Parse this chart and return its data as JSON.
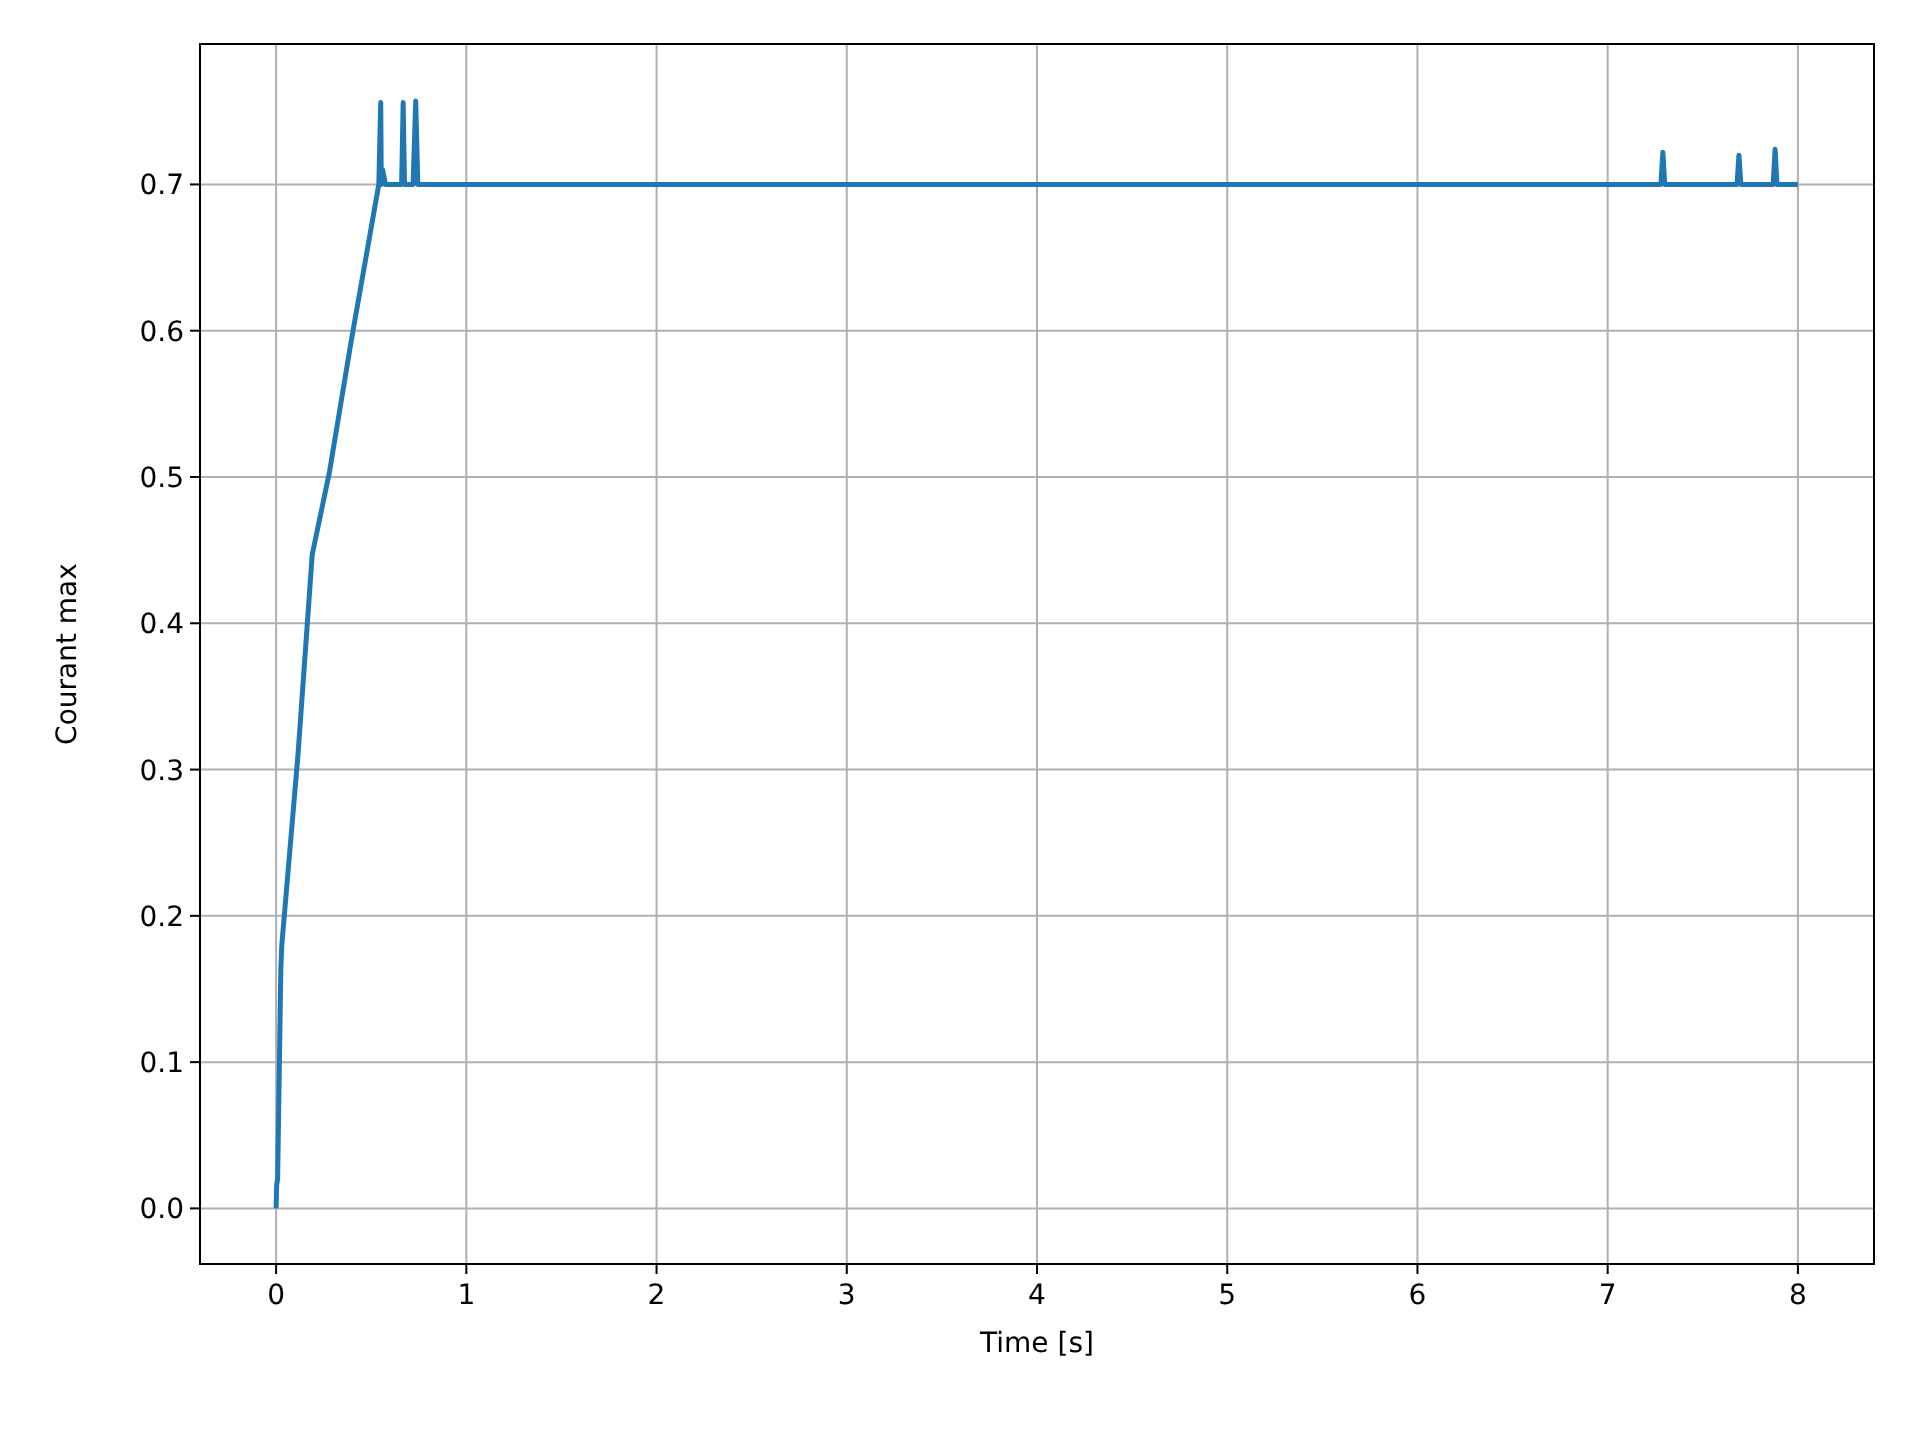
{
  "chart_data": {
    "type": "line",
    "xlabel": "Time [s]",
    "ylabel": "Courant max",
    "xlim": [
      -0.4,
      8.4
    ],
    "ylim": [
      -0.038,
      0.796
    ],
    "xticks": [
      0,
      1,
      2,
      3,
      4,
      5,
      6,
      7,
      8
    ],
    "yticks": [
      {
        "value": 0,
        "label": "0.0"
      },
      0.1,
      0.2,
      0.3,
      0.4,
      0.5,
      0.6,
      0.7
    ],
    "grid": true,
    "line_style": "solid",
    "series": [
      {
        "color": "#1f77b4",
        "x": [
          0,
          0.003,
          0.008,
          0.025,
          0.03,
          0.115,
          0.19,
          0.28,
          0.395,
          0.54,
          0.55,
          0.553,
          0.56,
          0.575,
          0.585,
          0.66,
          0.668,
          0.675,
          0.72,
          0.734,
          0.745,
          1.5,
          2,
          3,
          4,
          5,
          6,
          7,
          7.28,
          7.29,
          7.3,
          7.68,
          7.69,
          7.7,
          7.87,
          7.88,
          7.89,
          8.0
        ],
        "values": [
          0,
          0.016,
          0.02,
          0.164,
          0.18,
          0.31,
          0.447,
          0.503,
          0.593,
          0.7,
          0.756,
          0.7,
          0.71,
          0.7,
          0.7,
          0.7,
          0.756,
          0.7,
          0.7,
          0.757,
          0.7,
          0.7,
          0.7,
          0.7,
          0.7,
          0.7,
          0.7,
          0.7,
          0.7,
          0.722,
          0.7,
          0.7,
          0.72,
          0.7,
          0.7,
          0.724,
          0.7,
          0.7
        ]
      }
    ]
  }
}
